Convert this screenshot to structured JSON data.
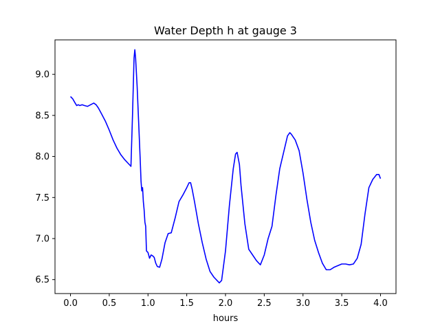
{
  "chart_data": {
    "type": "line",
    "title": "Water Depth h at gauge 3",
    "xlabel": "hours",
    "ylabel": "",
    "xlim": [
      -0.2,
      4.2
    ],
    "ylim": [
      6.33,
      9.42
    ],
    "x_ticks": [
      0.0,
      0.5,
      1.0,
      1.5,
      2.0,
      2.5,
      3.0,
      3.5,
      4.0
    ],
    "x_tick_labels": [
      "0.0",
      "0.5",
      "1.0",
      "1.5",
      "2.0",
      "2.5",
      "3.0",
      "3.5",
      "4.0"
    ],
    "y_ticks": [
      6.5,
      7.0,
      7.5,
      8.0,
      8.5,
      9.0
    ],
    "y_tick_labels": [
      "6.5",
      "7.0",
      "7.5",
      "8.0",
      "8.5",
      "9.0"
    ],
    "grid": false,
    "series": [
      {
        "color": "#0000ff",
        "x": [
          0.0,
          0.03,
          0.06,
          0.08,
          0.1,
          0.12,
          0.15,
          0.18,
          0.22,
          0.26,
          0.3,
          0.33,
          0.36,
          0.4,
          0.45,
          0.5,
          0.55,
          0.6,
          0.65,
          0.7,
          0.74,
          0.76,
          0.78,
          0.8,
          0.82,
          0.83,
          0.84,
          0.86,
          0.88,
          0.9,
          0.91,
          0.92,
          0.93,
          0.94,
          0.95,
          0.96,
          0.97,
          0.98,
          1.0,
          1.02,
          1.04,
          1.06,
          1.08,
          1.1,
          1.12,
          1.15,
          1.18,
          1.22,
          1.26,
          1.3,
          1.35,
          1.4,
          1.45,
          1.5,
          1.53,
          1.55,
          1.57,
          1.6,
          1.65,
          1.7,
          1.75,
          1.8,
          1.85,
          1.9,
          1.92,
          1.95,
          2.0,
          2.05,
          2.1,
          2.13,
          2.15,
          2.18,
          2.2,
          2.25,
          2.3,
          2.35,
          2.4,
          2.45,
          2.5,
          2.55,
          2.6,
          2.65,
          2.7,
          2.75,
          2.8,
          2.83,
          2.85,
          2.9,
          2.95,
          3.0,
          3.05,
          3.1,
          3.15,
          3.2,
          3.25,
          3.3,
          3.35,
          3.4,
          3.45,
          3.5,
          3.55,
          3.6,
          3.65,
          3.7,
          3.75,
          3.8,
          3.85,
          3.9,
          3.95,
          3.98,
          4.0
        ],
        "y": [
          8.73,
          8.7,
          8.65,
          8.62,
          8.63,
          8.62,
          8.63,
          8.62,
          8.61,
          8.63,
          8.65,
          8.63,
          8.59,
          8.52,
          8.43,
          8.32,
          8.2,
          8.1,
          8.02,
          7.96,
          7.92,
          7.9,
          7.88,
          8.5,
          9.2,
          9.3,
          9.2,
          8.85,
          8.4,
          7.95,
          7.7,
          7.58,
          7.62,
          7.45,
          7.35,
          7.2,
          7.15,
          6.85,
          6.83,
          6.76,
          6.8,
          6.79,
          6.77,
          6.7,
          6.66,
          6.65,
          6.75,
          6.95,
          7.06,
          7.07,
          7.25,
          7.45,
          7.53,
          7.62,
          7.68,
          7.68,
          7.6,
          7.45,
          7.18,
          6.95,
          6.75,
          6.6,
          6.53,
          6.48,
          6.46,
          6.49,
          6.85,
          7.4,
          7.85,
          8.03,
          8.05,
          7.9,
          7.65,
          7.18,
          6.87,
          6.8,
          6.73,
          6.68,
          6.8,
          7.0,
          7.15,
          7.52,
          7.85,
          8.05,
          8.25,
          8.29,
          8.27,
          8.2,
          8.07,
          7.8,
          7.48,
          7.2,
          6.98,
          6.83,
          6.7,
          6.62,
          6.62,
          6.65,
          6.67,
          6.69,
          6.69,
          6.68,
          6.69,
          6.76,
          6.93,
          7.3,
          7.62,
          7.72,
          7.78,
          7.78,
          7.73
        ]
      }
    ]
  }
}
